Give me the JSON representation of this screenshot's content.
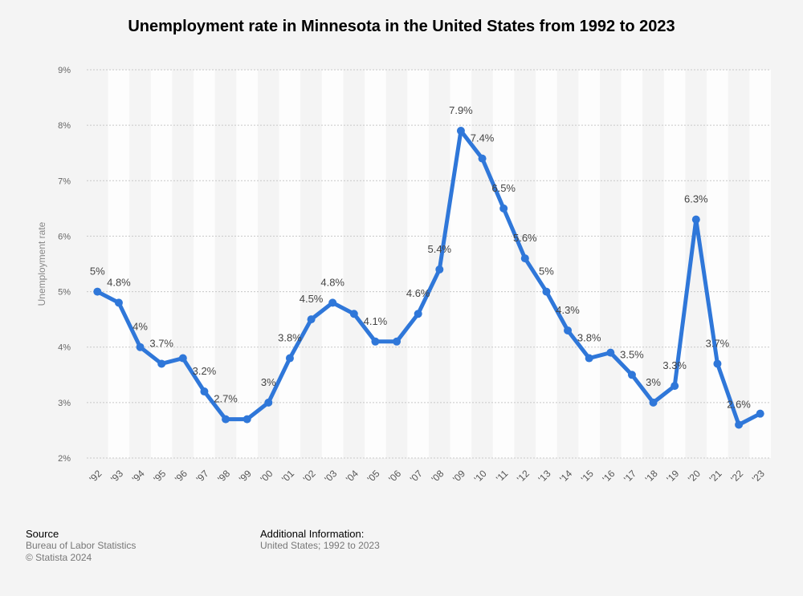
{
  "chart_data": {
    "type": "line",
    "title": "Unemployment rate in Minnesota in the United States from 1992 to 2023",
    "ylabel": "Unemployment rate",
    "xlabel": "",
    "ylim": [
      2,
      9
    ],
    "yticks": [
      "2%",
      "3%",
      "4%",
      "5%",
      "6%",
      "7%",
      "8%",
      "9%"
    ],
    "grid": true,
    "categories": [
      "'92",
      "'93",
      "'94",
      "'95",
      "'96",
      "'97",
      "'98",
      "'99",
      "'00",
      "'01",
      "'02",
      "'03",
      "'04",
      "'05",
      "'06",
      "'07",
      "'08",
      "'09",
      "'10",
      "'11",
      "'12",
      "'13",
      "'14",
      "'15",
      "'16",
      "'17",
      "'18",
      "'19",
      "'20",
      "'21",
      "'22",
      "'23"
    ],
    "values": [
      5,
      4.8,
      4,
      3.7,
      3.8,
      3.2,
      2.7,
      2.7,
      3,
      3.8,
      4.5,
      4.8,
      4.6,
      4.1,
      4.1,
      4.6,
      5.4,
      7.9,
      7.4,
      6.5,
      5.6,
      5,
      4.3,
      3.8,
      3.9,
      3.5,
      3,
      3.3,
      6.3,
      3.7,
      2.6,
      2.8
    ],
    "data_labels": [
      "5%",
      "4.8%",
      "4%",
      "3.7%",
      "",
      "3.2%",
      "2.7%",
      "",
      "3%",
      "3.8%",
      "4.5%",
      "4.8%",
      "",
      "4.1%",
      "",
      "4.6%",
      "5.4%",
      "7.9%",
      "7.4%",
      "6.5%",
      "5.6%",
      "5%",
      "4.3%",
      "3.8%",
      "",
      "3.5%",
      "3%",
      "3.3%",
      "6.3%",
      "3.7%",
      "2.6%",
      ""
    ],
    "line_color": "#2f77d9"
  },
  "footer": {
    "source_head": "Source",
    "source_line1": "Bureau of Labor Statistics",
    "source_line2": "© Statista 2024",
    "info_head": "Additional Information:",
    "info_line1": "United States; 1992 to 2023"
  }
}
